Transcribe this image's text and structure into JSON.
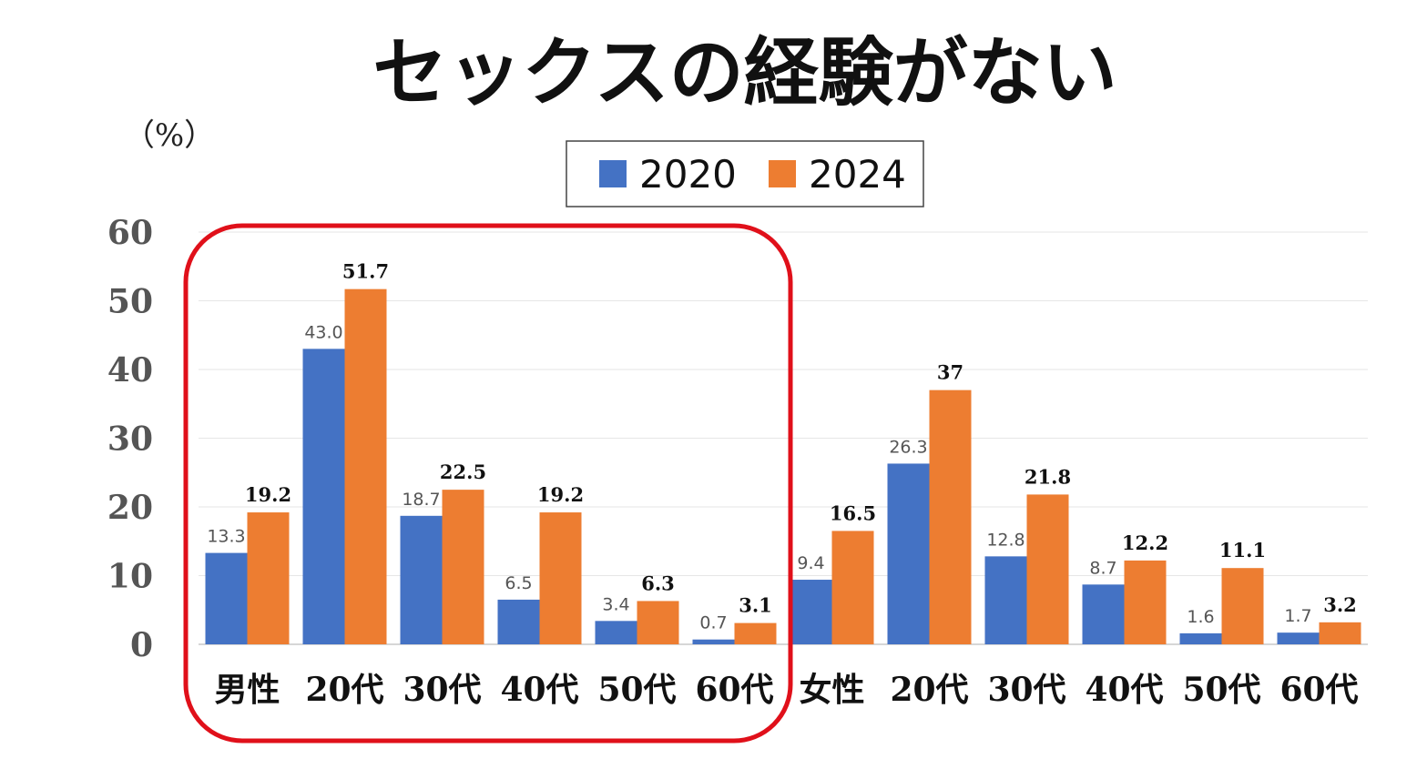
{
  "chart_data": {
    "type": "bar",
    "title": "セックスの経験がない",
    "unit_label": "（%）",
    "ylim": [
      0,
      60
    ],
    "yticks": [
      "0",
      "10",
      "20",
      "30",
      "40",
      "50",
      "60"
    ],
    "grid": true,
    "legend_position": "top-center",
    "categories": [
      "男性",
      "20代",
      "30代",
      "40代",
      "50代",
      "60代",
      "女性",
      "20代",
      "30代",
      "40代",
      "50代",
      "60代"
    ],
    "series": [
      {
        "name": "2020",
        "color": "#4472c4",
        "values": [
          13.3,
          43.0,
          18.7,
          6.5,
          3.4,
          0.7,
          9.4,
          26.3,
          12.8,
          8.7,
          1.6,
          1.7
        ],
        "labels": [
          "13.3",
          "43.0",
          "18.7",
          "6.5",
          "3.4",
          "0.7",
          "9.4",
          "26.3",
          "12.8",
          "8.7",
          "1.6",
          "1.7"
        ]
      },
      {
        "name": "2024",
        "color": "#ed7d31",
        "values": [
          19.2,
          51.7,
          22.5,
          19.2,
          6.3,
          3.1,
          16.5,
          37,
          21.8,
          12.2,
          11.1,
          3.2
        ],
        "labels": [
          "19.2",
          "51.7",
          "22.5",
          "19.2",
          "6.3",
          "3.1",
          "16.5",
          "37",
          "21.8",
          "12.2",
          "11.1",
          "3.2"
        ]
      }
    ],
    "highlight": {
      "color": "#e0101a",
      "from_category": 0,
      "to_category": 5
    }
  }
}
